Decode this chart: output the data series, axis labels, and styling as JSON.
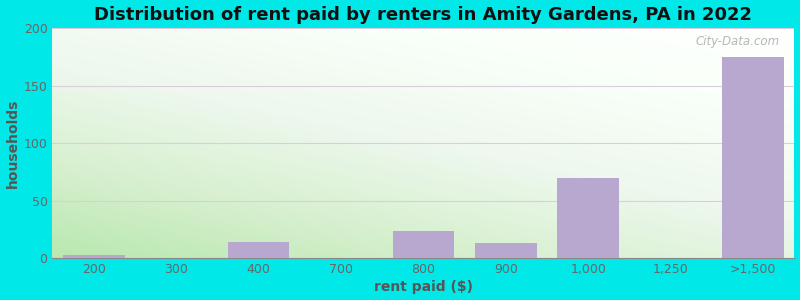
{
  "title": "Distribution of rent paid by renters in Amity Gardens, PA in 2022",
  "xlabel": "rent paid ($)",
  "ylabel": "households",
  "categories": [
    "200",
    "300",
    "400",
    "700",
    "800",
    "900",
    "1,000",
    "1,250",
    ">1,500"
  ],
  "values": [
    3,
    0,
    14,
    0,
    24,
    13,
    70,
    0,
    175
  ],
  "bar_color": "#b8a8d0",
  "ylim": [
    0,
    200
  ],
  "yticks": [
    0,
    50,
    100,
    150,
    200
  ],
  "outer_bg": "#00e8e8",
  "title_fontsize": 13,
  "axis_label_fontsize": 10,
  "tick_fontsize": 9,
  "watermark": "City-Data.com",
  "grid_color": "#ddccdd",
  "gradient_colors": [
    "#c8e8c0",
    "#e8f5e0",
    "#f0f8ee",
    "#ffffff"
  ],
  "title_color": "#111111"
}
